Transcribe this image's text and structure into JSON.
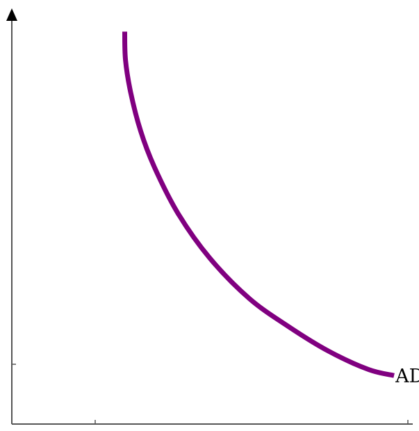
{
  "chart_data": {
    "type": "line",
    "title": "",
    "xlabel": "",
    "ylabel": "",
    "xlim": [
      0,
      10
    ],
    "ylim": [
      0,
      10
    ],
    "grid": false,
    "series": [
      {
        "name": "AD",
        "color": "#800080",
        "x": [
          2.85,
          2.87,
          3.0,
          3.25,
          3.6,
          4.2,
          5.0,
          6.0,
          7.0,
          8.0,
          9.0,
          9.65
        ],
        "y": [
          9.7,
          9.0,
          8.2,
          7.25,
          6.35,
          5.2,
          4.1,
          3.1,
          2.4,
          1.8,
          1.35,
          1.2
        ]
      }
    ]
  }
}
